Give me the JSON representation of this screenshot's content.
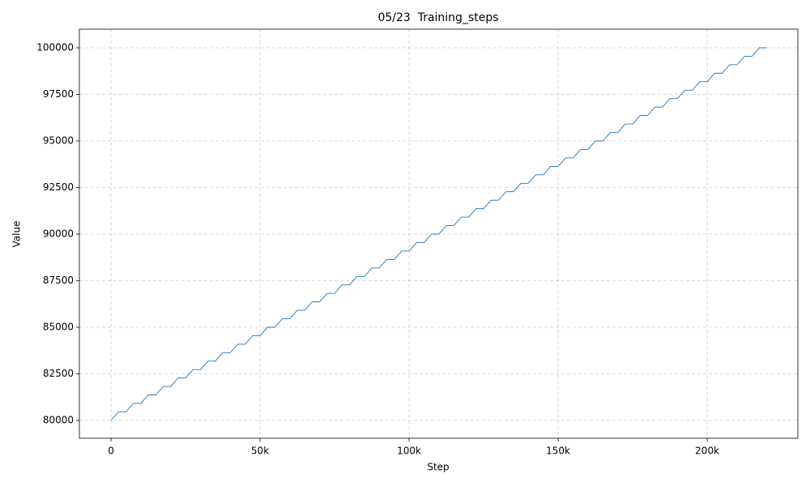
{
  "chart_data": {
    "type": "line",
    "title": "05/23  Training_steps",
    "x_label": "Step",
    "y_label": "Value",
    "x": [
      0,
      2500,
      5000,
      7500,
      10000,
      12500,
      15000,
      17500,
      20000,
      22500,
      25000,
      27500,
      30000,
      32500,
      35000,
      37500,
      40000,
      42500,
      45000,
      47500,
      50000,
      52500,
      55000,
      57500,
      60000,
      62500,
      65000,
      67500,
      70000,
      72500,
      75000,
      77500,
      80000,
      82500,
      85000,
      87500,
      90000,
      92500,
      95000,
      97500,
      100000,
      102500,
      105000,
      107500,
      110000,
      112500,
      115000,
      117500,
      120000,
      122500,
      125000,
      127500,
      130000,
      132500,
      135000,
      137500,
      140000,
      142500,
      145000,
      147500,
      150000,
      152500,
      155000,
      157500,
      160000,
      162500,
      165000,
      167500,
      170000,
      172500,
      175000,
      177500,
      180000,
      182500,
      185000,
      187500,
      190000,
      192500,
      195000,
      197500,
      200000,
      202500,
      205000,
      207500,
      210000,
      212500,
      215000,
      217500,
      220000
    ],
    "series": [
      {
        "name": "Training_steps",
        "color": "#1f77b4",
        "values": [
          80000,
          80455,
          80455,
          80909,
          80909,
          81364,
          81364,
          81818,
          81818,
          82273,
          82273,
          82727,
          82727,
          83182,
          83182,
          83636,
          83636,
          84091,
          84091,
          84545,
          84545,
          85000,
          85000,
          85455,
          85455,
          85909,
          85909,
          86364,
          86364,
          86818,
          86818,
          87273,
          87273,
          87727,
          87727,
          88182,
          88182,
          88636,
          88636,
          89091,
          89091,
          89545,
          89545,
          90000,
          90000,
          90455,
          90455,
          90909,
          90909,
          91364,
          91364,
          91818,
          91818,
          92273,
          92273,
          92727,
          92727,
          93182,
          93182,
          93636,
          93636,
          94091,
          94091,
          94545,
          94545,
          95000,
          95000,
          95455,
          95455,
          95909,
          95909,
          96364,
          96364,
          96818,
          96818,
          97273,
          97273,
          97727,
          97727,
          98182,
          98182,
          98636,
          98636,
          99091,
          99091,
          99545,
          99545,
          100000,
          100000
        ]
      }
    ],
    "xlim": [
      -10600,
      230400
    ],
    "ylim": [
      79043,
      101000
    ],
    "xticks": [
      0,
      {
        "value": 50000,
        "label": "50k"
      },
      {
        "value": 100000,
        "label": "100k"
      },
      {
        "value": 150000,
        "label": "150k"
      },
      {
        "value": 200000,
        "label": "200k"
      }
    ],
    "yticks": [
      80000,
      82500,
      85000,
      87500,
      90000,
      92500,
      95000,
      97500,
      100000
    ],
    "grid": true
  }
}
